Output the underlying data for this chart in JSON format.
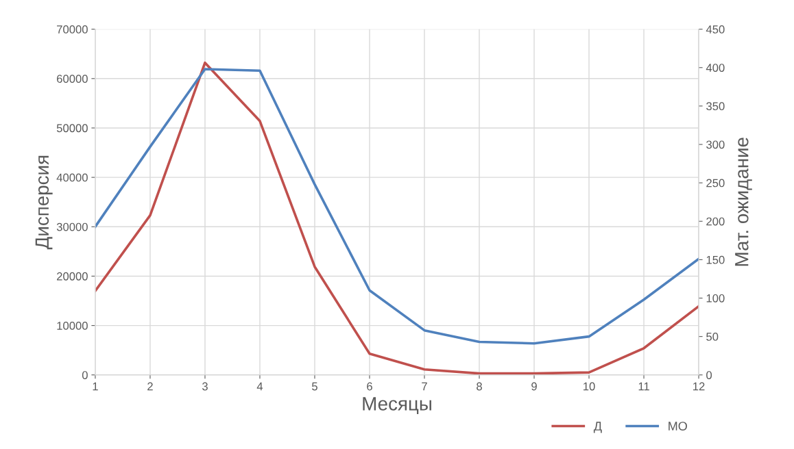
{
  "chart_data": {
    "type": "line",
    "xlabel": "Месяцы",
    "ylabel": "Дисперсия",
    "y2label": "Мат. ожидание",
    "x": [
      1,
      2,
      3,
      4,
      5,
      6,
      7,
      8,
      9,
      10,
      11,
      12
    ],
    "series": [
      {
        "name": "Д",
        "color": "#c0504d",
        "values": [
          17000,
          32300,
          63200,
          51400,
          21900,
          4300,
          1100,
          300,
          300,
          500,
          5400,
          13900
        ]
      },
      {
        "name": "МО",
        "color": "#4f81bd",
        "axis": "y2",
        "values": [
          193,
          297,
          398,
          396,
          248,
          110,
          58,
          43,
          41,
          50,
          98,
          151
        ]
      }
    ],
    "xlim": [
      1,
      12
    ],
    "xticks": [
      1,
      2,
      3,
      4,
      5,
      6,
      7,
      8,
      9,
      10,
      11,
      12
    ],
    "ylim": [
      0,
      70000
    ],
    "yticks": [
      0,
      10000,
      20000,
      30000,
      40000,
      50000,
      60000,
      70000
    ],
    "y2lim": [
      0,
      450
    ],
    "y2ticks": [
      0,
      50,
      100,
      150,
      200,
      250,
      300,
      350,
      400,
      450
    ],
    "grid": true,
    "legend": "bottom right",
    "marker": "none",
    "line_style": "solid"
  }
}
